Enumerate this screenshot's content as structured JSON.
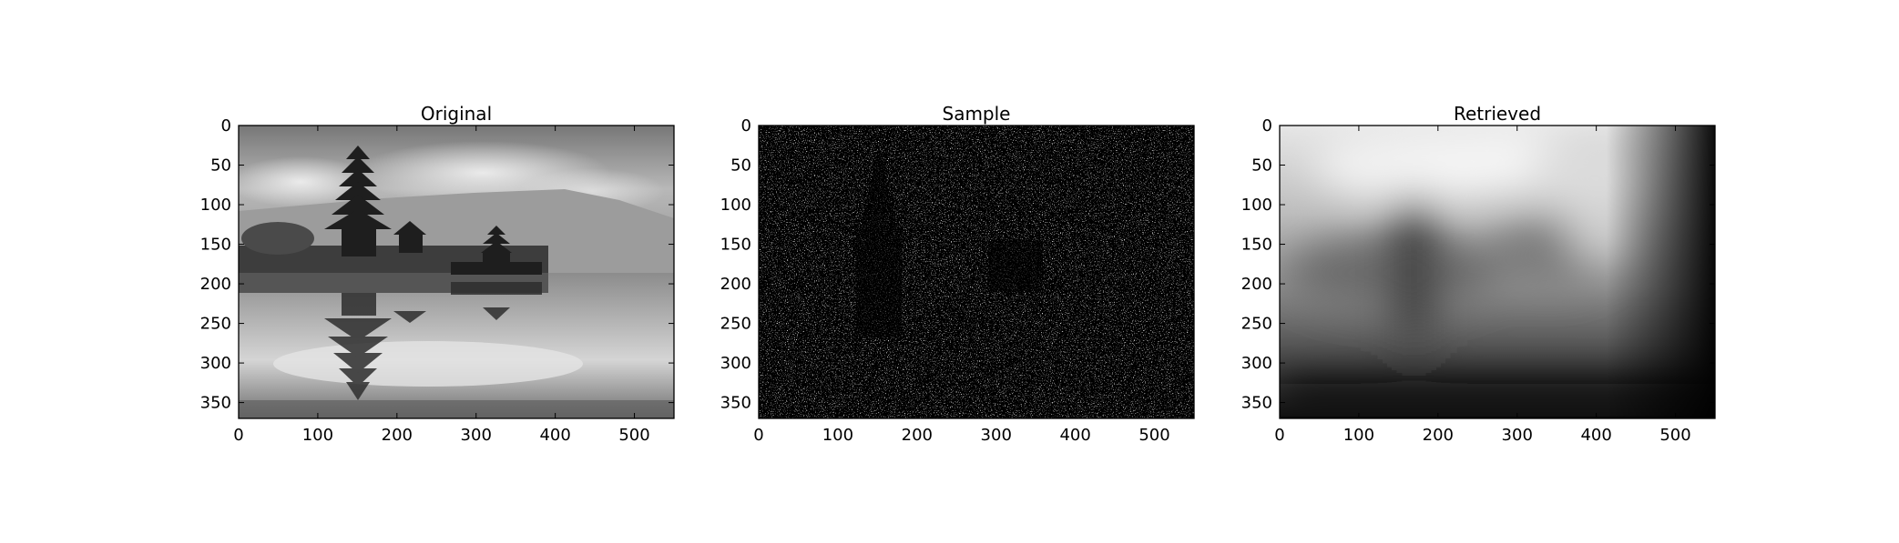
{
  "chart_data": [
    {
      "type": "image",
      "title": "Original",
      "xlim": [
        0,
        550
      ],
      "ylim": [
        370,
        0
      ],
      "x_ticks": [
        0,
        100,
        200,
        300,
        400,
        500
      ],
      "y_ticks": [
        0,
        50,
        100,
        150,
        200,
        250,
        300,
        350
      ],
      "colormap": "gray"
    },
    {
      "type": "image",
      "title": "Sample",
      "xlim": [
        0,
        550
      ],
      "ylim": [
        370,
        0
      ],
      "x_ticks": [
        0,
        100,
        200,
        300,
        400,
        500
      ],
      "y_ticks": [
        0,
        50,
        100,
        150,
        200,
        250,
        300,
        350
      ],
      "colormap": "gray"
    },
    {
      "type": "image",
      "title": "Retrieved",
      "xlim": [
        0,
        550
      ],
      "ylim": [
        370,
        0
      ],
      "x_ticks": [
        0,
        100,
        200,
        300,
        400,
        500
      ],
      "y_ticks": [
        0,
        50,
        100,
        150,
        200,
        250,
        300,
        350
      ],
      "colormap": "gray"
    }
  ]
}
